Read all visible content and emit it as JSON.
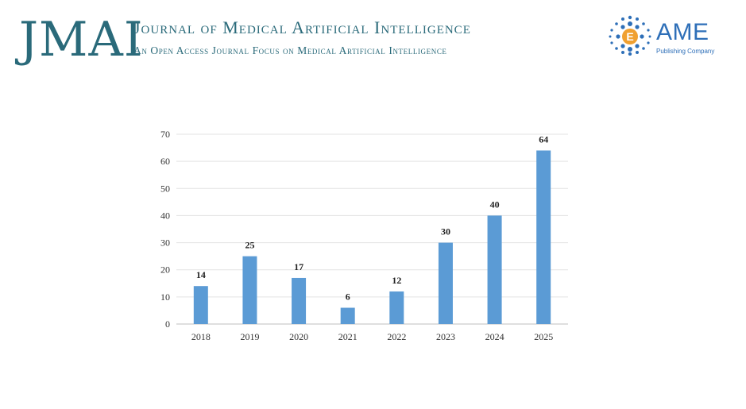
{
  "header": {
    "logo_text": "JMAI",
    "journal_title": "Journal of Medical Artificial Intelligence",
    "journal_subtitle": "An Open Access Journal Focus on Medical Artificial Intelligence",
    "publisher_name": "AME",
    "publisher_tagline": "Publishing Company",
    "publisher_mark_letter": "E",
    "colors": {
      "journal": "#2a6a7a",
      "publisher": "#2e6fb8",
      "publisher_accent": "#f0a030"
    }
  },
  "chart_data": {
    "type": "bar",
    "categories": [
      "2018",
      "2019",
      "2020",
      "2021",
      "2022",
      "2023",
      "2024",
      "2025"
    ],
    "values": [
      14,
      25,
      17,
      6,
      12,
      30,
      40,
      64
    ],
    "data_labels": [
      "14",
      "25",
      "17",
      "6",
      "12",
      "30",
      "40",
      "64"
    ],
    "title": "",
    "xlabel": "",
    "ylabel": "",
    "ylim": [
      0,
      70
    ],
    "yticks": [
      "0",
      "10",
      "20",
      "30",
      "40",
      "50",
      "60",
      "70"
    ],
    "grid": true,
    "legend": "none",
    "bar_color": "#5b9bd5"
  }
}
